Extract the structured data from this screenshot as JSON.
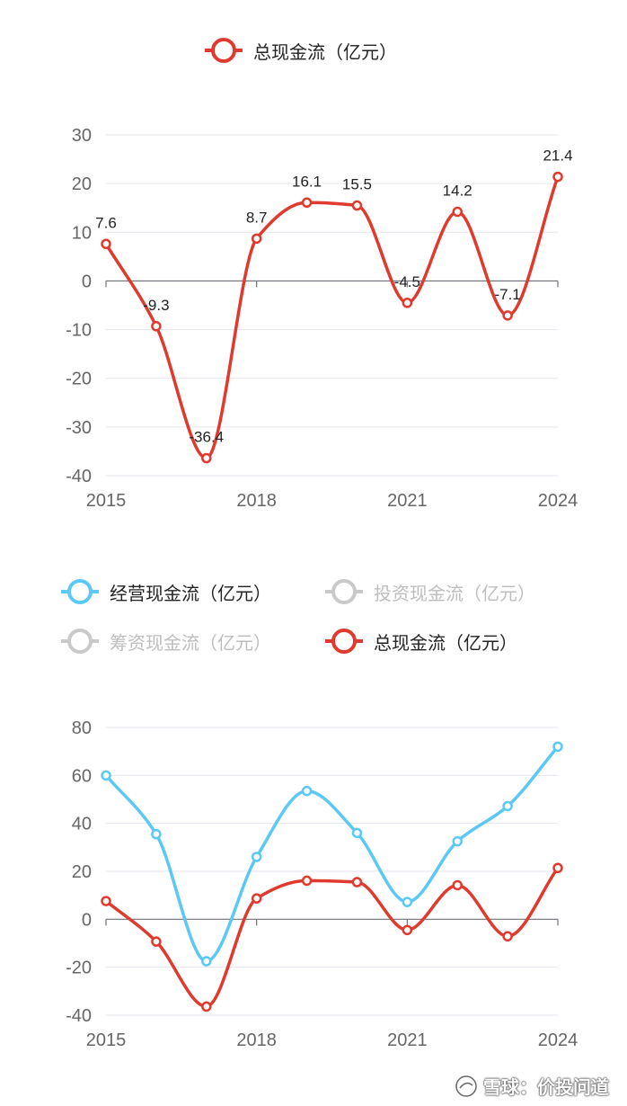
{
  "chart_data": [
    {
      "type": "line",
      "legend": [
        "总现金流（亿元）"
      ],
      "x": [
        "2015",
        "2016",
        "2017",
        "2018",
        "2019",
        "2020",
        "2021",
        "2022",
        "2023",
        "2024"
      ],
      "x_tick_labels": [
        "2015",
        "2018",
        "2021",
        "2024"
      ],
      "y_tick_labels": [
        "30",
        "20",
        "10",
        "0",
        "-10",
        "-20",
        "-30",
        "-40"
      ],
      "ylim": [
        -40,
        30
      ],
      "series": [
        {
          "name": "总现金流（亿元）",
          "color": "#e03a2e",
          "values": [
            7.6,
            -9.3,
            -36.4,
            8.7,
            16.1,
            15.5,
            -4.5,
            14.2,
            -7.1,
            21.4
          ],
          "labels": [
            "7.6",
            "-9.3",
            "-36.4",
            "8.7",
            "16.1",
            "15.5",
            "-4.5",
            "14.2",
            "-7.1",
            "21.4"
          ]
        }
      ],
      "grid": true,
      "legend_position": "top-center"
    },
    {
      "type": "line",
      "legend": [
        "经营现金流（亿元）",
        "投资现金流（亿元）",
        "筹资现金流（亿元）",
        "总现金流（亿元）"
      ],
      "x": [
        "2015",
        "2016",
        "2017",
        "2018",
        "2019",
        "2020",
        "2021",
        "2022",
        "2023",
        "2024"
      ],
      "x_tick_labels": [
        "2015",
        "2018",
        "2021",
        "2024"
      ],
      "y_tick_labels": [
        "80",
        "60",
        "40",
        "20",
        "0",
        "-20",
        "-40"
      ],
      "ylim": [
        -40,
        80
      ],
      "series": [
        {
          "name": "经营现金流（亿元）",
          "color": "#5bc8f5",
          "values": [
            60,
            35.5,
            -17.5,
            26,
            53.5,
            36,
            7.2,
            32.5,
            47.2,
            72
          ]
        },
        {
          "name": "总现金流（亿元）",
          "color": "#e03a2e",
          "values": [
            7.6,
            -9.3,
            -36.4,
            8.7,
            16.1,
            15.5,
            -4.5,
            14.2,
            -7.1,
            21.4
          ]
        }
      ],
      "hidden_series": [
        "投资现金流（亿元）",
        "筹资现金流（亿元）"
      ],
      "grid": true,
      "legend_position": "top"
    }
  ],
  "legend_colors": {
    "operating": "#5bc8f5",
    "investing": "#c9c9c9",
    "financing": "#c9c9c9",
    "total": "#e03a2e"
  },
  "watermark": {
    "text": "雪球：价投问道"
  }
}
